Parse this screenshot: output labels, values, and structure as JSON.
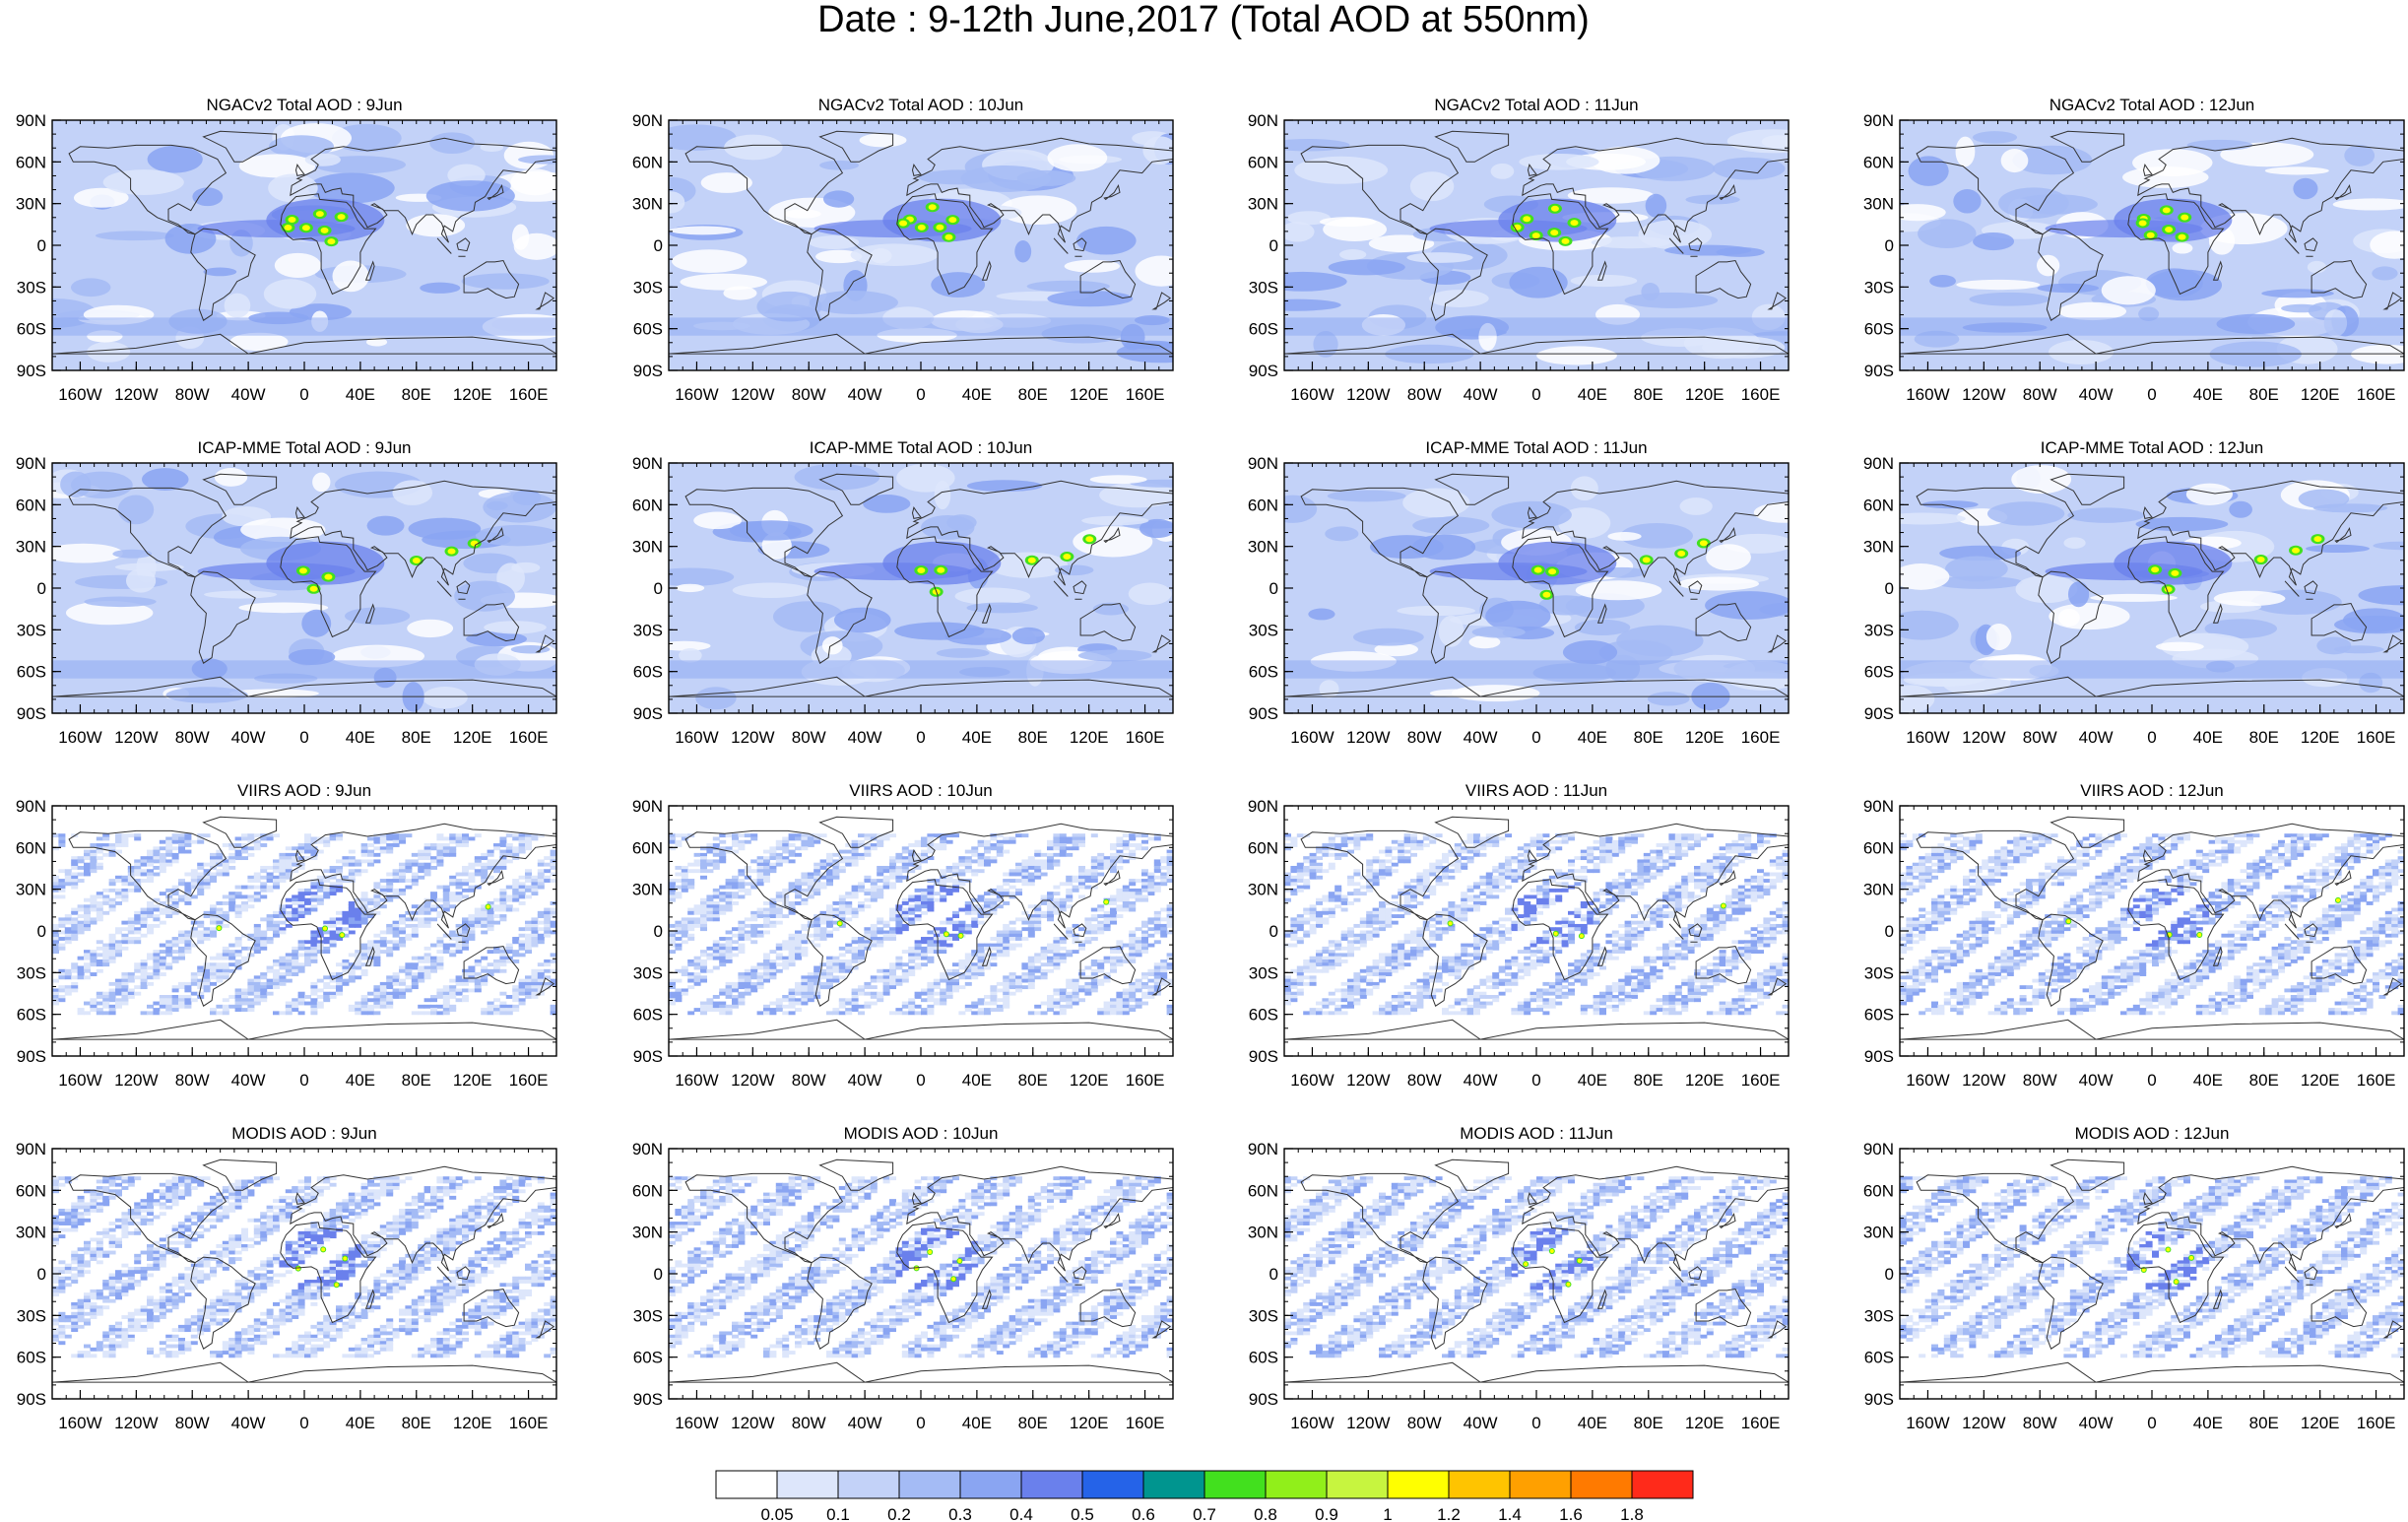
{
  "title": "Date : 9-12th June,2017 (Total AOD at 550nm)",
  "rows": [
    {
      "model": "NGACv2 Total AOD",
      "kind": "model"
    },
    {
      "model": "ICAP-MME Total AOD",
      "kind": "model"
    },
    {
      "model": "VIIRS AOD",
      "kind": "obs"
    },
    {
      "model": "MODIS AOD",
      "kind": "obs"
    }
  ],
  "days": [
    "9Jun",
    "10Jun",
    "11Jun",
    "12Jun"
  ],
  "lat_labels": [
    "90N",
    "60N",
    "30N",
    "0",
    "30S",
    "60S",
    "90S"
  ],
  "lon_labels": [
    "160W",
    "120W",
    "80W",
    "40W",
    "0",
    "40E",
    "80E",
    "120E",
    "160E"
  ],
  "colorbar": {
    "labels": [
      "0.05",
      "0.1",
      "0.2",
      "0.3",
      "0.4",
      "0.5",
      "0.6",
      "0.7",
      "0.8",
      "0.9",
      "1",
      "1.2",
      "1.4",
      "1.6",
      "1.8"
    ],
    "colors": [
      "#ffffff",
      "#dde6fb",
      "#c3d2f8",
      "#a4bbf5",
      "#8aa5f2",
      "#6a80ec",
      "#2563e8",
      "#00958f",
      "#42e01e",
      "#91ef1a",
      "#c7f53f",
      "#ffff00",
      "#ffc400",
      "#ffa000",
      "#ff7a00",
      "#ff2a1a"
    ]
  },
  "colors": {
    "ocean_model": "#c3d2f8",
    "coast": "#333333",
    "dust_high": "#42e01e",
    "dust_core": "#ffff00"
  }
}
